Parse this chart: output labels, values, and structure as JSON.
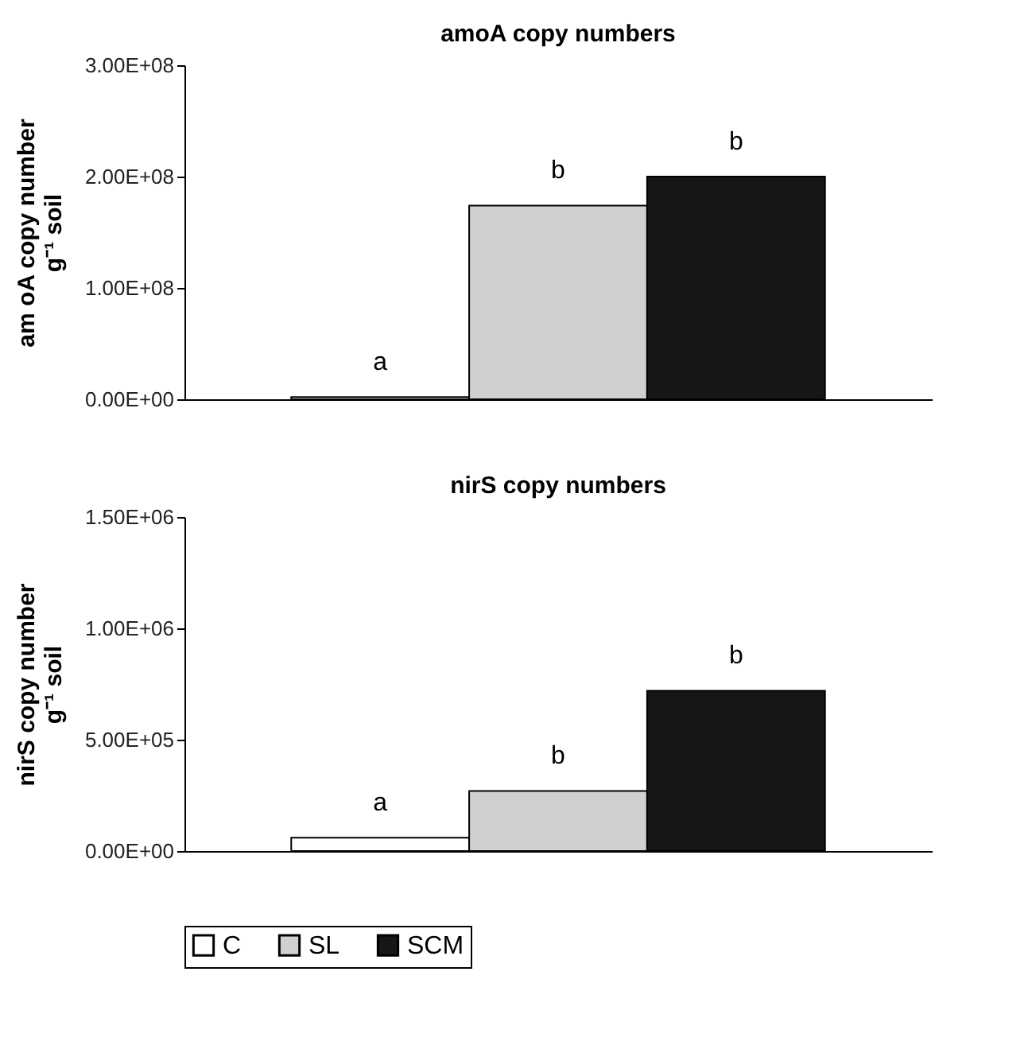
{
  "chart_data": [
    {
      "type": "bar",
      "title": "amoA copy numbers",
      "ylabel": "am oA copy number\ng⁻¹ soil",
      "categories": [
        null
      ],
      "series": [
        {
          "name": "C",
          "color": "#ffffff",
          "values": [
            2000000
          ]
        },
        {
          "name": "SL",
          "color": "#d0d0d0",
          "values": [
            174000000
          ]
        },
        {
          "name": "SCM",
          "color": "#161616",
          "values": [
            200000000
          ]
        }
      ],
      "ylim": [
        0,
        300000000
      ],
      "yticks": [
        {
          "value": 0,
          "label": "0.00E+00"
        },
        {
          "value": 100000000,
          "label": "1.00E+08"
        },
        {
          "value": 200000000,
          "label": "2.00E+08"
        },
        {
          "value": 300000000,
          "label": "3.00E+08"
        }
      ],
      "annotations": [
        {
          "text": "a",
          "y": 2000000
        },
        {
          "text": "b",
          "y": 174000000
        },
        {
          "text": "b",
          "y": 200000000
        }
      ],
      "grid": false,
      "legend": "bottom"
    },
    {
      "type": "bar",
      "title": "nirS copy numbers",
      "ylabel": "nirS  copy number\ng⁻¹ soil",
      "categories": [
        null
      ],
      "series": [
        {
          "name": "C",
          "color": "#ffffff",
          "values": [
            60000
          ]
        },
        {
          "name": "SL",
          "color": "#d0d0d0",
          "values": [
            270000
          ]
        },
        {
          "name": "SCM",
          "color": "#161616",
          "values": [
            720000
          ]
        }
      ],
      "ylim": [
        0,
        1500000
      ],
      "yticks": [
        {
          "value": 0,
          "label": "0.00E+00"
        },
        {
          "value": 500000,
          "label": "5.00E+05"
        },
        {
          "value": 1000000,
          "label": "1.00E+06"
        },
        {
          "value": 1500000,
          "label": "1.50E+06"
        }
      ],
      "annotations": [
        {
          "text": "a",
          "y": 60000
        },
        {
          "text": "b",
          "y": 270000
        },
        {
          "text": "b",
          "y": 720000
        }
      ],
      "grid": false,
      "legend": "bottom"
    }
  ]
}
